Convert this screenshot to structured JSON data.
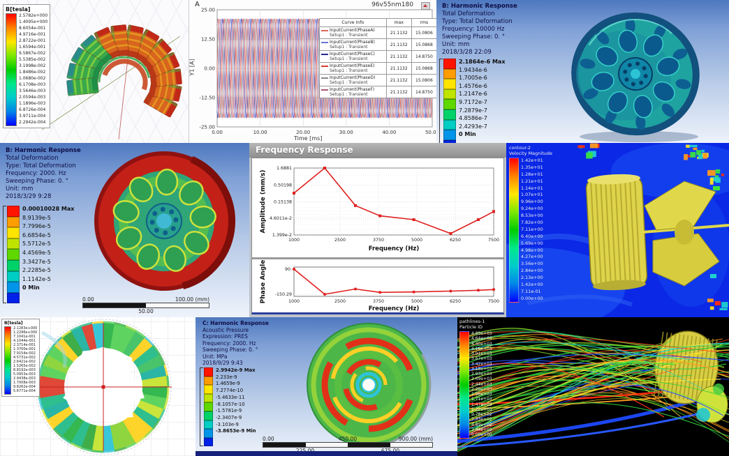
{
  "colors": {
    "ansys_band_colors": [
      "#ff1400",
      "#ff9d00",
      "#ffe400",
      "#bfe400",
      "#5fd800",
      "#00d26a",
      "#00cdc3",
      "#0095e8",
      "#0021e8"
    ],
    "ansys_bg_top": "#4e78bf",
    "cfd_background": "#0a28e6",
    "curve_red": "#e0635a",
    "curve_blue": "#6a74d8",
    "freq_line": "#e02020"
  },
  "panel_maxwell_coil": {
    "legend_title": "B[tesla]",
    "legend_values": [
      "2.5782e+000",
      "1.4095e+000",
      "8.6054e-001",
      "4.9716e-001",
      "2.8722e-001",
      "1.6594e-001",
      "9.5867e-002",
      "5.5385e-002",
      "3.1998e-002",
      "1.8486e-002",
      "1.0680e-002",
      "6.1708e-003",
      "3.5646e-003",
      "2.0594e-003",
      "1.1896e-003",
      "6.8726e-004",
      "3.9711e-004",
      "2.2942e-004"
    ]
  },
  "panel_transient_plot": {
    "corner_label": "A",
    "table": {
      "headers": [
        "Curve Info",
        "max",
        "rms"
      ],
      "rows": [
        {
          "label": "InputCurrent(PhaseA)",
          "sub": "Setup1 : Transient",
          "max": "21.1132",
          "rms": "15.0806",
          "color": "#e0635a"
        },
        {
          "label": "InputCurrent(PhaseB)",
          "sub": "Setup1 : Transient",
          "max": "21.1132",
          "rms": "15.0868",
          "color": "#6a74d8"
        },
        {
          "label": "InputCurrent(PhaseC)",
          "sub": "Setup1 : Transient",
          "max": "21.1132",
          "rms": "14.8750",
          "color": "#28289a"
        },
        {
          "label": "InputCurrent(PhaseE)",
          "sub": "Setup1 : Transient",
          "max": "21.1132",
          "rms": "15.0868",
          "color": "#d83c34"
        },
        {
          "label": "InputCurrent(PhaseD)",
          "sub": "Setup1 : Transient",
          "max": "21.1132",
          "rms": "15.0806",
          "color": "#8a8a8a"
        },
        {
          "label": "InputCurrent(PhaseF)",
          "sub": "Setup1 : Transient",
          "max": "21.1132",
          "rms": "14.8750",
          "color": "#a85a70"
        }
      ]
    }
  },
  "panel_harmonic_wheel_teal": {
    "info_lines": [
      "B: Harmonic Response",
      "Total Deformation",
      "Type: Total Deformation",
      "Frequency: 10000 Hz",
      "Sweeping Phase: 0. °",
      "Unit: mm",
      "2018/3/28 22:09"
    ],
    "legend": {
      "max_label": "2.1864e-6 Max",
      "values": [
        "1.9434e-6",
        "1.7005e-6",
        "1.4576e-6",
        "1.2147e-6",
        "9.7172e-7",
        "7.2879e-7",
        "4.8586e-7",
        "2.4293e-7"
      ],
      "min_label": "0 Min"
    }
  },
  "panel_harmonic_wheel_red": {
    "info_lines": [
      "B: Harmonic Response",
      "Total Deformation",
      "Type: Total Deformation",
      "Frequency: 2000. Hz",
      "Sweeping Phase: 0. °",
      "Unit: mm",
      "2018/3/29 9:28"
    ],
    "legend": {
      "max_label": "0.00010028 Max",
      "values": [
        "8.9139e-5",
        "7.7996e-5",
        "6.6854e-5",
        "5.5712e-5",
        "4.4569e-5",
        "3.3427e-5",
        "2.2285e-5",
        "1.1142e-5"
      ],
      "min_label": "0 Min"
    },
    "scale_bar": {
      "top": [
        "0.00",
        "100.00 (mm)"
      ],
      "bottom": [
        "50.00"
      ]
    }
  },
  "panel_frequency_response": {
    "window_title": "Frequency Response"
  },
  "panel_cfd_contour": {
    "legend_title_line1": "contour-2",
    "legend_title_line2": "Velocity Magnitude",
    "legend_values": [
      "1.42e+01",
      "1.35e+01",
      "1.28e+01",
      "1.21e+01",
      "1.14e+01",
      "1.07e+01",
      "9.96e+00",
      "9.24e+00",
      "8.53e+00",
      "7.82e+00",
      "7.11e+00",
      "6.40e+00",
      "5.69e+00",
      "4.98e+00",
      "4.27e+00",
      "3.56e+00",
      "2.84e+00",
      "2.13e+00",
      "1.42e+00",
      "7.11e-01",
      "0.00e+00"
    ]
  },
  "panel_maxwell_rotor": {
    "legend_title": "B[tesla]",
    "legend_values": [
      "2.1283e+000",
      "1.2296e+000",
      "7.1041e-001",
      "4.1044e-001",
      "2.3714e-001",
      "1.3700e-001",
      "7.9154e-002",
      "4.5731e-002",
      "2.6421e-002",
      "1.5265e-002",
      "8.8192e-003",
      "5.0953e-003",
      "2.9438e-003",
      "1.7008e-003",
      "9.8262e-004",
      "5.6771e-004"
    ]
  },
  "panel_acoustic_disk": {
    "info_lines": [
      "C: Harmonic Response",
      "Acoustic Pressure",
      "Expression: PRES",
      "Frequency: 2000. Hz",
      "Sweeping Phase: 0. °",
      "Unit: MPa",
      "2018/9/29 9:43"
    ],
    "legend": {
      "max_label": "2.9942e-9 Max",
      "values": [
        "2.233e-9",
        "1.4659e-9",
        "7.2774e-10",
        "-5.4633e-11",
        "-8.1057e-10",
        "-1.5781e-9",
        "-2.3407e-9",
        "-3.103e-9"
      ],
      "min_label": "-3.8653e-9 Min"
    },
    "scale_bar": {
      "top": [
        "0.00",
        "450.00",
        "900.00 (mm)"
      ],
      "bottom": [
        "225.00",
        "675.00"
      ]
    }
  },
  "panel_pathlines": {
    "legend_title_line1": "pathlines-1",
    "legend_title_line2": "Particle ID",
    "legend_values": [
      "4.89e+03",
      "4.64e+03",
      "4.40e+03",
      "4.16e+03",
      "3.91e+03",
      "3.67e+03",
      "3.42e+03",
      "3.18e+03",
      "2.93e+03",
      "2.69e+03",
      "2.44e+03",
      "2.20e+03",
      "1.96e+03",
      "1.71e+03",
      "1.47e+03",
      "1.22e+03",
      "9.78e+02",
      "7.33e+02",
      "4.89e+02",
      "2.44e+02",
      "0.00e+00"
    ]
  },
  "chart_data": [
    {
      "id": "transient-currents",
      "type": "line",
      "title": "96v55nm180",
      "xlabel": "Time [ms]",
      "ylabel": "Y1 [A]",
      "xlim": [
        0,
        50
      ],
      "ylim": [
        -25,
        25
      ],
      "xticks": [
        "0.00",
        "10.00",
        "20.00",
        "30.00",
        "40.00",
        "50.00"
      ],
      "yticks": [
        "25.00",
        "12.50",
        "0.00",
        "-12.50",
        "-25.00"
      ],
      "amplitude": 21.1132,
      "period_ms": 2.2,
      "series": [
        {
          "name": "InputCurrent(PhaseA)",
          "color": "#e0635a",
          "phase_deg": 0
        },
        {
          "name": "InputCurrent(PhaseB)",
          "color": "#6a74d8",
          "phase_deg": 300
        },
        {
          "name": "InputCurrent(PhaseC)",
          "color": "#28289a",
          "phase_deg": 240
        },
        {
          "name": "InputCurrent(PhaseE)",
          "color": "#d83c34",
          "phase_deg": 180
        },
        {
          "name": "InputCurrent(PhaseD)",
          "color": "#8a8a8a",
          "phase_deg": 120
        },
        {
          "name": "InputCurrent(PhaseF)",
          "color": "#a85a70",
          "phase_deg": 60
        }
      ],
      "legend_position": "right-overlay",
      "grid": true
    },
    {
      "id": "frequency-amplitude",
      "type": "line",
      "ylabel": "Amplitude (mm/s)",
      "xlabel": "Frequency (Hz)",
      "yscale": "log",
      "ytick_labels": [
        "1.6881",
        "0.50198",
        "0.15138",
        "4.6011e-2",
        "1.399e-2"
      ],
      "xtick_labels": [
        "1000",
        "2500",
        "3750",
        "5000",
        "6250",
        "7500"
      ],
      "x": [
        1000,
        2000,
        3000,
        3800,
        4900,
        6100,
        7000,
        7500
      ],
      "y": [
        0.28,
        1.6881,
        0.115,
        0.055,
        0.042,
        0.0155,
        0.042,
        0.075
      ],
      "line_color": "#e02020",
      "grid": true
    },
    {
      "id": "frequency-phase",
      "type": "line",
      "ylabel": "Phase Angle",
      "xlabel": "Frequency (Hz)",
      "ytick_labels": [
        "90.",
        "-150.29"
      ],
      "xtick_labels": [
        "1000",
        "2500",
        "3750",
        "5000",
        "6250",
        "7500"
      ],
      "ylim": [
        -170,
        110
      ],
      "x": [
        1000,
        2000,
        3000,
        3800,
        4900,
        6100,
        7000,
        7500
      ],
      "y": [
        90,
        -150.29,
        -100,
        -132,
        -128,
        -120,
        -112,
        -105
      ],
      "line_color": "#e02020",
      "grid": true
    }
  ]
}
